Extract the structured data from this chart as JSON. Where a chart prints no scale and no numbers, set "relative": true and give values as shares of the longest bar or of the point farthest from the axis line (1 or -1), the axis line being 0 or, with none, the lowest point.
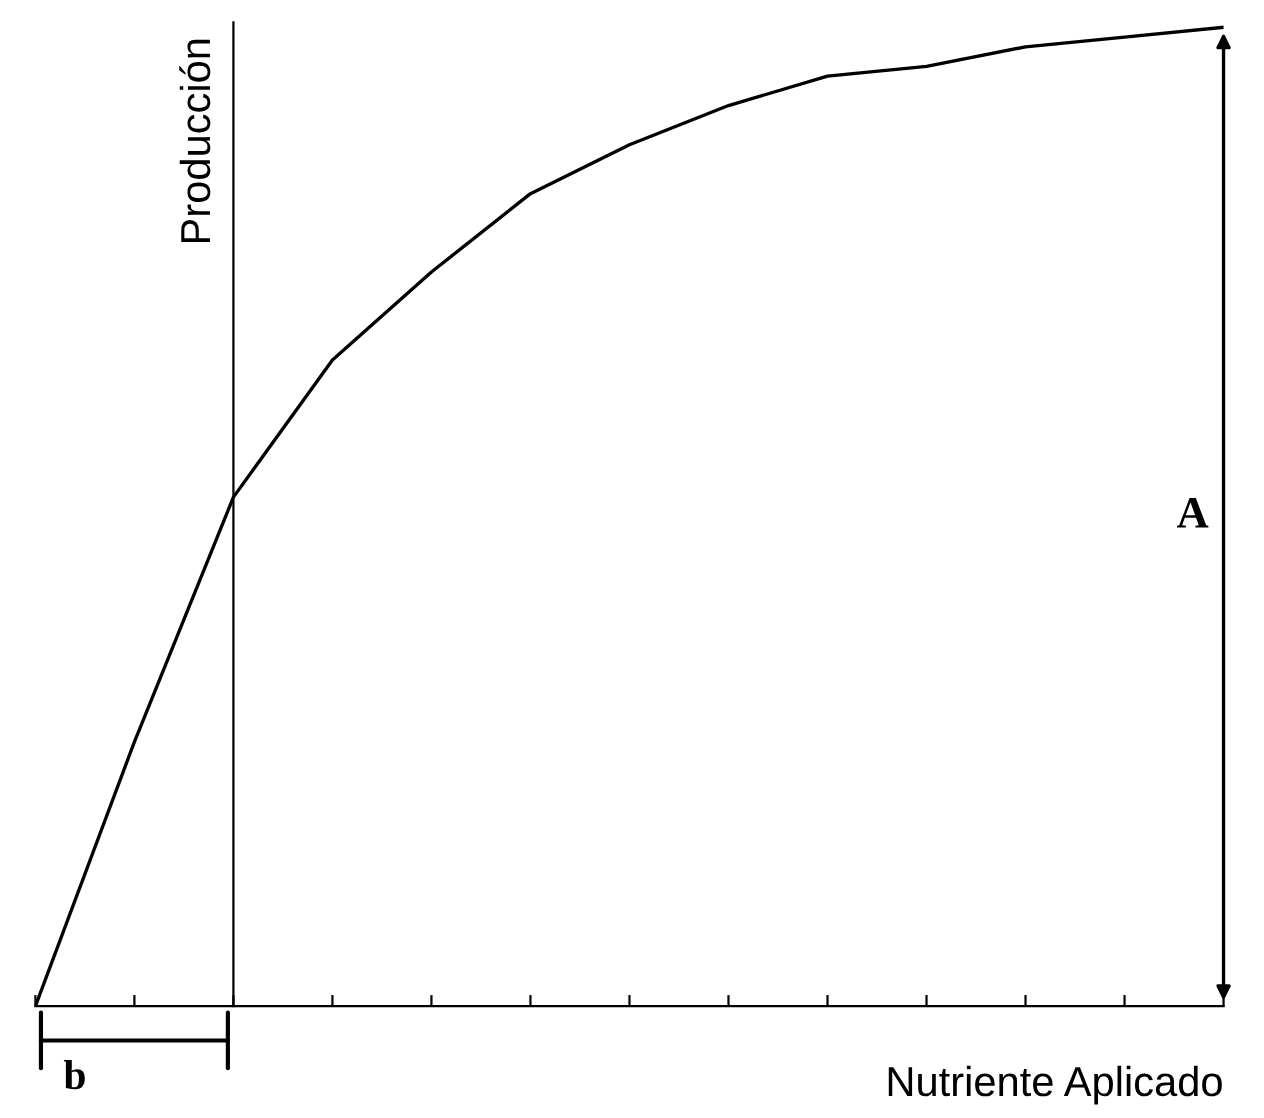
{
  "chart_data": {
    "type": "line",
    "relative": true,
    "categories": [
      null,
      null,
      null,
      null,
      null,
      null,
      null,
      null,
      null,
      null,
      null,
      null,
      null
    ],
    "series": [
      {
        "color": "#000000",
        "values": [
          0,
          0.27,
          0.52,
          0.66,
          0.75,
          0.83,
          0.88,
          0.92,
          0.95,
          0.96,
          0.98,
          0.99,
          1.0
        ]
      }
    ],
    "ylabel": "Producción",
    "xlabel": "Nutriente Aplicado",
    "annotations": [
      "A",
      "b"
    ],
    "grid": false,
    "legend": false,
    "marker": "none",
    "line_style": "solid"
  }
}
